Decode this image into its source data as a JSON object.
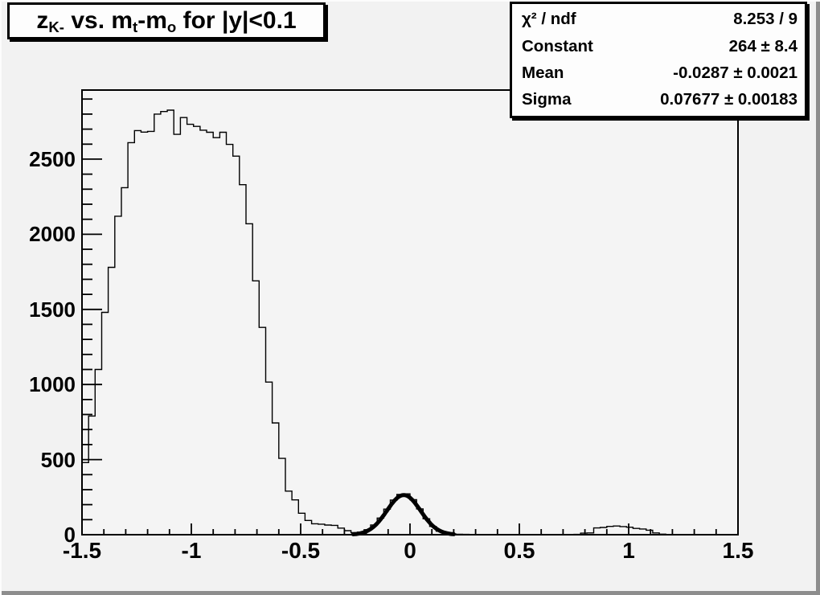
{
  "title_box": {
    "text": "z_K- vs. m_t-m_o for |y|<0.1",
    "parts": [
      {
        "t": "z",
        "sub": false
      },
      {
        "t": "K-",
        "sub": true
      },
      {
        "t": " vs. m",
        "sub": false
      },
      {
        "t": "t",
        "sub": true
      },
      {
        "t": "-m",
        "sub": false
      },
      {
        "t": "o",
        "sub": true
      },
      {
        "t": " for |y|<0.1",
        "sub": false
      }
    ]
  },
  "stats_box": {
    "rows": [
      {
        "label": "χ² / ndf",
        "value": "8.253 / 9"
      },
      {
        "label": "Constant",
        "value": "264 ± 8.4"
      },
      {
        "label": "Mean",
        "value": "-0.0287 ± 0.0021"
      },
      {
        "label": "Sigma",
        "value": "0.07677 ± 0.00183"
      }
    ]
  },
  "colors": {
    "canvas_bg": "#f2f2f2",
    "frame_bg": "#f4f4f4",
    "line": "#000000",
    "pave_bg": "#fdfdfd",
    "bevel_light": "#fcfcfc",
    "bevel_dark": "#8d8d8d"
  },
  "chart_data": {
    "type": "histogram",
    "title": "z_K- vs. m_t-m_o for |y|<0.1",
    "xlabel": "",
    "ylabel": "",
    "xlim": [
      -1.5,
      1.5
    ],
    "ylim": [
      0,
      2960
    ],
    "grid": false,
    "legend": false,
    "bins": {
      "start": -1.5,
      "width": 0.03,
      "counts": [
        480,
        790,
        1100,
        1480,
        1780,
        2120,
        2310,
        2610,
        2690,
        2680,
        2685,
        2800,
        2817,
        2826,
        2665,
        2777,
        2732,
        2718,
        2693,
        2679,
        2643,
        2679,
        2598,
        2520,
        2330,
        2070,
        1690,
        1380,
        1016,
        744,
        508,
        290,
        232,
        143,
        95,
        73,
        70,
        64,
        62,
        44,
        27,
        14,
        17,
        33,
        65,
        111,
        170,
        230,
        268,
        272,
        233,
        172,
        106,
        55,
        23,
        10,
        5,
        3,
        2,
        1,
        0,
        0,
        0,
        0,
        0,
        0,
        0,
        0,
        0,
        0,
        0,
        0,
        0,
        0,
        0,
        2,
        10,
        12,
        45,
        48,
        55,
        58,
        54,
        50,
        42,
        38,
        30,
        12,
        4,
        0,
        0,
        0,
        0,
        0,
        0,
        0,
        0,
        0,
        0,
        0
      ]
    },
    "x_ticks": {
      "major": [
        -1.5,
        -1,
        -0.5,
        0,
        0.5,
        1,
        1.5
      ],
      "labels": [
        "-1.5",
        "-1",
        "-0.5",
        "0",
        "0.5",
        "1",
        "1.5"
      ],
      "minor_step": 0.1
    },
    "y_ticks": {
      "major": [
        0,
        500,
        1000,
        1500,
        2000,
        2500
      ],
      "labels": [
        "0",
        "500",
        "1000",
        "1500",
        "2000",
        "2500"
      ],
      "minor_step": 100
    },
    "fit": {
      "model": "gaussian",
      "chi2": 8.253,
      "ndf": 9,
      "constant": 264,
      "mean": -0.0287,
      "sigma": 0.07677,
      "range": [
        -0.26,
        0.2
      ]
    }
  }
}
